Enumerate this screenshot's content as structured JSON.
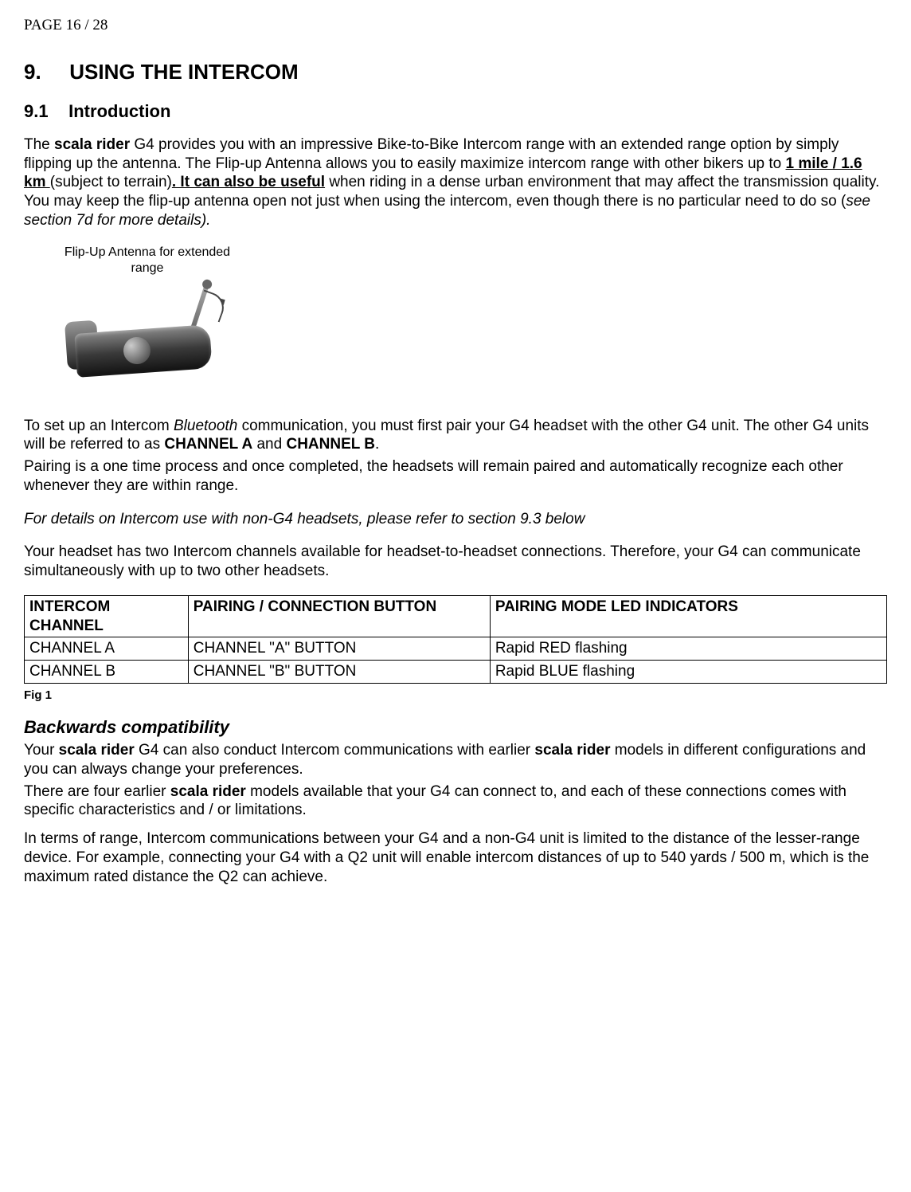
{
  "page_indicator": "PAGE 16 / 28",
  "h1_num": "9.",
  "h1_title": "USING THE INTERCOM",
  "h2_num": "9.1",
  "h2_title": "Introduction",
  "intro": {
    "t1": "The ",
    "bold_product": "scala rider",
    "t2": " G4 provides you with an impressive Bike-to-Bike Intercom range with an extended range option by simply flipping up the antenna. The Flip-up Antenna allows you to easily maximize intercom range with other bikers up to ",
    "u1": "1 mile / 1.6 km ",
    "t3": "(subject to terrain)",
    "u2": ". It can also be useful",
    "t4": " when riding in a dense urban environment that may affect the transmission quality. You may keep the flip-up antenna open not just when using the intercom, even though there is no particular need to do so (",
    "italic_tail": "see section 7d for more details)."
  },
  "image_caption": "Flip-Up Antenna for extended range",
  "setup": {
    "t1": "To set up an Intercom ",
    "bt": "Bluetooth",
    "t2": " communication, you must first pair your G4 headset with the other G4 unit. The other G4 units will be referred to as ",
    "cha": "CHANNEL A",
    "and": " and ",
    "chb": "CHANNEL B",
    "dot": ".",
    "line2": "Pairing is a one time process and once completed, the headsets will remain paired and automatically recognize each other whenever they are within range."
  },
  "details_note": "For details on Intercom use with non-G4 headsets, please refer to section 9.3 below",
  "channels_note": "Your headset has two Intercom channels available for headset-to-headset connections. Therefore, your G4 can communicate simultaneously with up to two other headsets.",
  "table": {
    "headers": [
      "INTERCOM CHANNEL",
      "PAIRING / CONNECTION BUTTON",
      "PAIRING MODE LED INDICATORS"
    ],
    "rows": [
      [
        "CHANNEL A",
        "CHANNEL \"A\" BUTTON",
        "Rapid RED flashing"
      ],
      [
        "CHANNEL B",
        "CHANNEL \"B\" BUTTON",
        "Rapid BLUE flashing"
      ]
    ],
    "col_widths": [
      "19%",
      "35%",
      "46%"
    ]
  },
  "fig_label": "Fig 1",
  "compat_heading": "Backwards compatibility",
  "compat": {
    "p1a": "Your ",
    "sr1": "scala rider",
    "p1b": " G4 can also conduct Intercom communications with earlier ",
    "sr2": "scala rider",
    "p1c": " models in different configurations and you can always change your preferences.",
    "p2a": "There are four earlier ",
    "sr3": "scala rider",
    "p2b": " models available that your G4 can connect to, and each of these connections comes with specific characteristics and / or limitations.",
    "p3": "In terms of range, Intercom communications between your G4 and a non-G4 unit is limited to the distance of the lesser-range device. For example, connecting your G4 with a Q2 unit will enable intercom distances of up to 540 yards / 500 m, which is the maximum rated distance the Q2 can achieve."
  }
}
